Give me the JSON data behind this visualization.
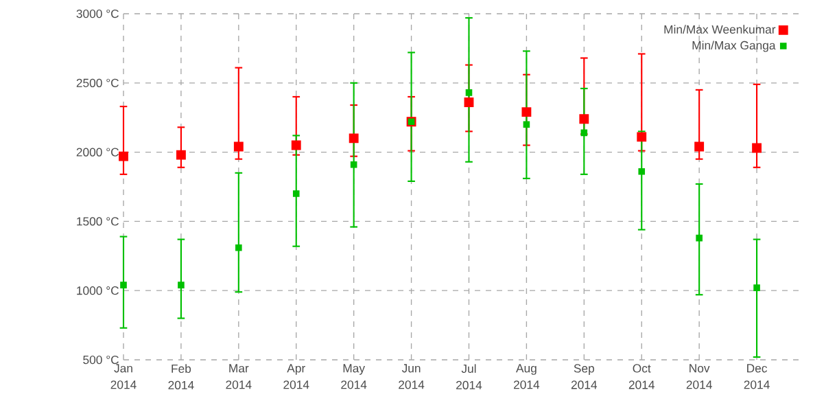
{
  "chart_data": {
    "type": "scatter",
    "categories": [
      "Jan 2014",
      "Feb 2014",
      "Mar 2014",
      "Apr 2014",
      "May 2014",
      "Jun 2014",
      "Jul 2014",
      "Aug 2014",
      "Sep 2014",
      "Oct 2014",
      "Nov 2014",
      "Dec 2014"
    ],
    "series": [
      {
        "name": "Min/Max Weenkumar",
        "color": "#ff0000",
        "values": [
          1970,
          1980,
          2040,
          2050,
          2100,
          2220,
          2360,
          2290,
          2240,
          2110,
          2040,
          2030
        ],
        "errors": [
          [
            1840,
            2330
          ],
          [
            1890,
            2180
          ],
          [
            1950,
            2610
          ],
          [
            1980,
            2400
          ],
          [
            1970,
            2340
          ],
          [
            2010,
            2400
          ],
          [
            2150,
            2630
          ],
          [
            2050,
            2560
          ],
          [
            2130,
            2680
          ],
          [
            2010,
            2710
          ],
          [
            1950,
            2450
          ],
          [
            1890,
            2490
          ]
        ]
      },
      {
        "name": "Min/Max Ganga",
        "color": "#00c000",
        "values": [
          1040,
          1040,
          1310,
          1700,
          1910,
          2220,
          2430,
          2200,
          2140,
          1860,
          1380,
          1020
        ],
        "errors": [
          [
            730,
            1390
          ],
          [
            800,
            1370
          ],
          [
            990,
            1850
          ],
          [
            1320,
            2120
          ],
          [
            1460,
            2500
          ],
          [
            1790,
            2720
          ],
          [
            1930,
            2970
          ],
          [
            1810,
            2730
          ],
          [
            1840,
            2460
          ],
          [
            1440,
            2150
          ],
          [
            970,
            1770
          ],
          [
            520,
            1370
          ]
        ]
      }
    ],
    "ylim": [
      500,
      3000
    ],
    "yticks": [
      {
        "value": 500,
        "label": "500 °C"
      },
      {
        "value": 1000,
        "label": "1000 °C"
      },
      {
        "value": 1500,
        "label": "1500 °C"
      },
      {
        "value": 2000,
        "label": "2000 °C"
      },
      {
        "value": 2500,
        "label": "2500 °C"
      },
      {
        "value": 3000,
        "label": "3000 °C"
      }
    ],
    "grid": true,
    "marker": "square",
    "legend": "top right"
  }
}
